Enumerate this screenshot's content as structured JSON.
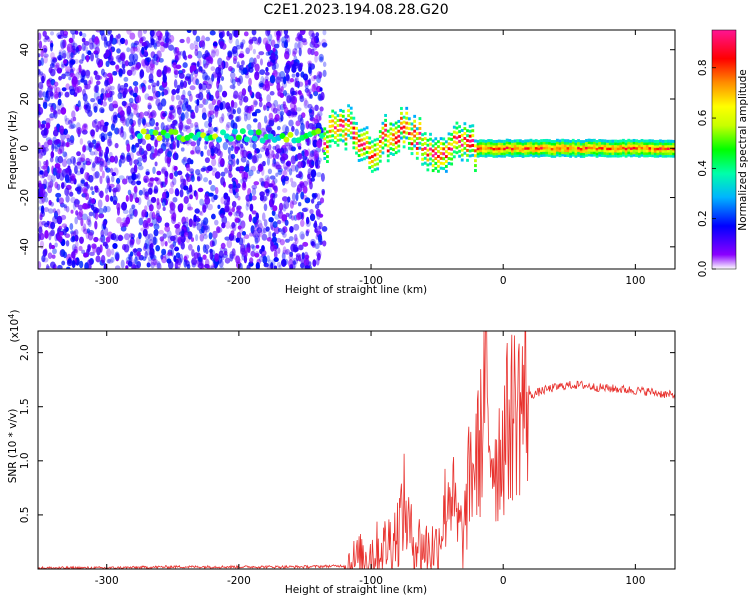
{
  "title": "C2E1.2023.194.08.28.G20",
  "colors": {
    "snr_line": "#e8322e",
    "colormap": [
      "#ffffff",
      "#8a00ff",
      "#0000ff",
      "#00b4ff",
      "#00ffaa",
      "#00ff00",
      "#c8ff00",
      "#ffff00",
      "#ff8c00",
      "#ff0000",
      "#ff1493"
    ]
  },
  "chart_data": [
    {
      "type": "heatmap",
      "xlabel": "Height of straight line (km)",
      "ylabel": "Frequency (Hz)",
      "xlim": [
        -352,
        130
      ],
      "ylim": [
        -49,
        48
      ],
      "xticks": [
        {
          "v": -300,
          "label": "-300"
        },
        {
          "v": -200,
          "label": "-200"
        },
        {
          "v": -100,
          "label": "-100"
        },
        {
          "v": 0,
          "label": "0"
        },
        {
          "v": 100,
          "label": "100"
        }
      ],
      "yticks": [
        {
          "v": 40,
          "label": "40"
        },
        {
          "v": 20,
          "label": "20"
        },
        {
          "v": 0,
          "label": "0"
        },
        {
          "v": -20,
          "label": "-20"
        },
        {
          "v": -40,
          "label": "-40"
        }
      ],
      "colorbar": {
        "label": "Normalized spectral amplitude",
        "range": [
          0.0,
          0.95
        ],
        "ticks": [
          {
            "v": 0.0,
            "label": "0.0"
          },
          {
            "v": 0.2,
            "label": "0.2"
          },
          {
            "v": 0.4,
            "label": "0.4"
          },
          {
            "v": 0.6,
            "label": "0.6"
          },
          {
            "v": 0.8,
            "label": "0.8"
          }
        ]
      },
      "regions": [
        {
          "name": "noise",
          "x_range": [
            -352,
            -135
          ],
          "y_range": [
            -49,
            48
          ],
          "amplitude": [
            0.05,
            0.2
          ]
        },
        {
          "name": "carrier",
          "x_range": [
            -135,
            130
          ],
          "center_hz": 0,
          "width_hz": 5,
          "amplitude": [
            0.3,
            0.9
          ]
        }
      ]
    },
    {
      "type": "line",
      "xlabel": "Height of straight line (km)",
      "ylabel": "SNR (10 * v/v)",
      "multiplier_label": "(x10",
      "multiplier_exp": "4",
      "multiplier_close": ")",
      "xlim": [
        -352,
        130
      ],
      "ylim": [
        0,
        2.2
      ],
      "xticks": [
        {
          "v": -300,
          "label": "-300"
        },
        {
          "v": -200,
          "label": "-200"
        },
        {
          "v": -100,
          "label": "-100"
        },
        {
          "v": 0,
          "label": "0"
        },
        {
          "v": 100,
          "label": "100"
        }
      ],
      "yticks": [
        {
          "v": 0.5,
          "label": "0.5"
        },
        {
          "v": 1.0,
          "label": "1.0"
        },
        {
          "v": 1.5,
          "label": "1.5"
        },
        {
          "v": 2.0,
          "label": "2.0"
        }
      ],
      "series": [
        {
          "x": [
            -352,
            -300,
            -250,
            -200,
            -150,
            -120,
            -110,
            -100,
            -90,
            -80,
            -75,
            -70,
            -60,
            -50,
            -40,
            -35,
            -30,
            -25,
            -20,
            -15,
            -10,
            -5,
            0,
            5,
            10,
            20,
            30,
            40,
            50,
            60,
            70,
            80,
            90,
            100,
            110,
            120,
            130
          ],
          "y": [
            0.01,
            0.01,
            0.02,
            0.02,
            0.02,
            0.03,
            0.08,
            0.15,
            0.2,
            0.35,
            0.6,
            0.3,
            0.2,
            0.2,
            0.8,
            0.4,
            0.3,
            0.9,
            1.0,
            1.3,
            1.2,
            1.0,
            1.2,
            1.4,
            1.5,
            1.6,
            1.65,
            1.68,
            1.7,
            1.7,
            1.68,
            1.67,
            1.66,
            1.65,
            1.64,
            1.62,
            1.6
          ]
        }
      ]
    }
  ]
}
